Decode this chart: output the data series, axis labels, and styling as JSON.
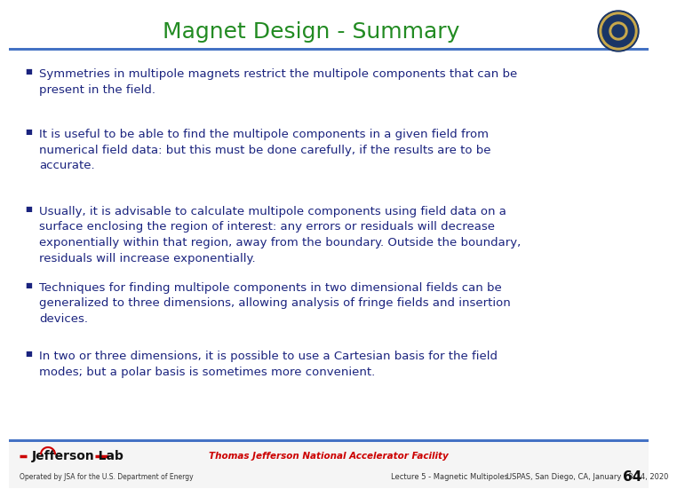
{
  "title": "Magnet Design - Summary",
  "title_color": "#228B22",
  "title_fontsize": 18,
  "background_color": "#ffffff",
  "text_color": "#1a237e",
  "bullets": [
    "Symmetries in multipole magnets restrict the multipole components that can be\npresent in the field.",
    "It is useful to be able to find the multipole components in a given field from\nnumerical field data: but this must be done carefully, if the results are to be\naccurate.",
    "Usually, it is advisable to calculate multipole components using field data on a\nsurface enclosing the region of interest: any errors or residuals will decrease\nexponentially within that region, away from the boundary. Outside the boundary,\nresiduals will increase exponentially.",
    "Techniques for finding multipole components in two dimensional fields can be\ngeneralized to three dimensions, allowing analysis of fringe fields and insertion\ndevices.",
    "In two or three dimensions, it is possible to use a Cartesian basis for the field\nmodes; but a polar basis is sometimes more convenient."
  ],
  "bullet_fontsize": 9.5,
  "footer_left1": "Jefferson Lab",
  "footer_left2": "Operated by JSA for the U.S. Department of Energy",
  "footer_center": "Thomas Jefferson National Accelerator Facility",
  "footer_right1": "Lecture 5 - Magnetic Multipoles",
  "footer_right2": "USPAS, San Diego, CA, January 13-24, 2020",
  "page_number": "64",
  "separator_color": "#4472c4",
  "jlab_red": "#cc0000"
}
